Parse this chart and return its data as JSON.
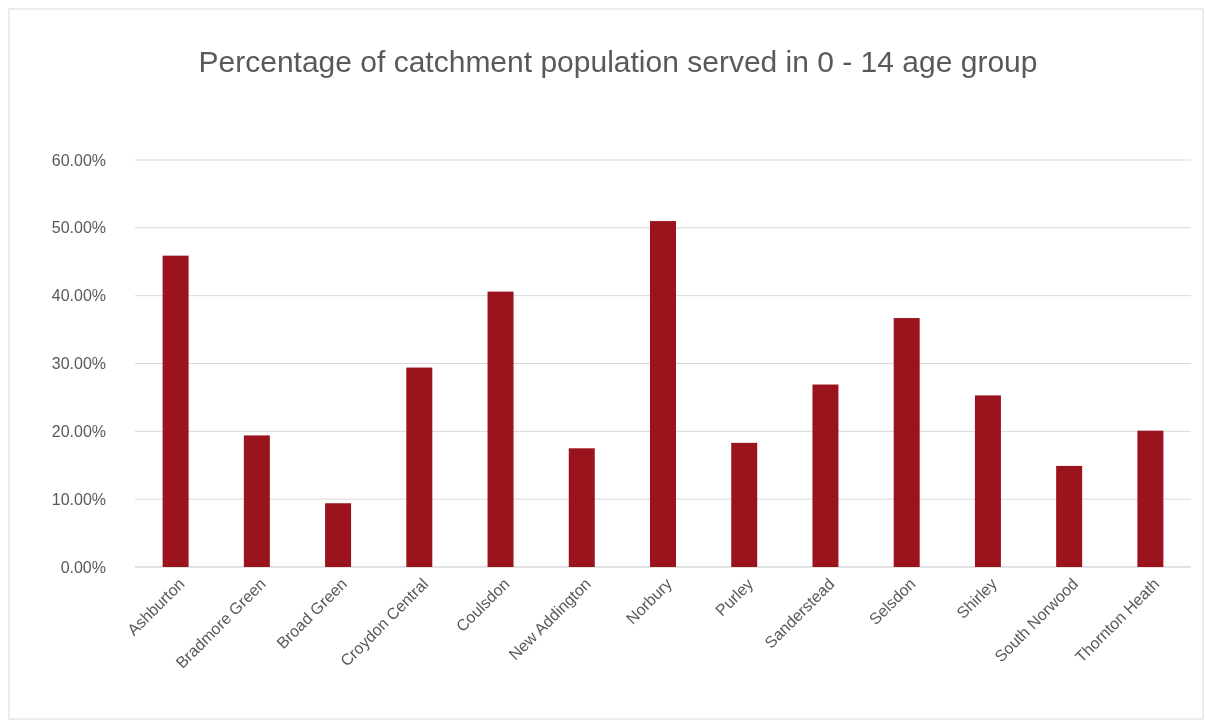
{
  "chart_data": {
    "type": "bar",
    "title": "Percentage of catchment population served in 0 - 14 age group",
    "categories": [
      "Ashburton",
      "Bradmore Green",
      "Broad Green",
      "Croydon Central",
      "Coulsdon",
      "New Addington",
      "Norbury",
      "Purley",
      "Sanderstead",
      "Selsdon",
      "Shirley",
      "South Norwood",
      "Thornton Heath"
    ],
    "values": [
      45.9,
      19.4,
      9.4,
      29.4,
      40.6,
      17.5,
      51.0,
      18.3,
      26.9,
      36.7,
      25.3,
      14.9,
      20.1
    ],
    "color": "#9b141d",
    "ylim": [
      0,
      60
    ],
    "yticks": [
      {
        "value": 0,
        "label": "0.00%"
      },
      {
        "value": 10,
        "label": "10.00%"
      },
      {
        "value": 20,
        "label": "20.00%"
      },
      {
        "value": 30,
        "label": "30.00%"
      },
      {
        "value": 40,
        "label": "40.00%"
      },
      {
        "value": 50,
        "label": "50.00%"
      },
      {
        "value": 60,
        "label": "60.00%"
      }
    ],
    "grid": "y"
  }
}
